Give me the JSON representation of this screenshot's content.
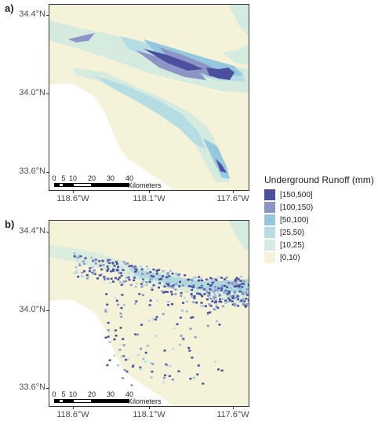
{
  "panels": [
    {
      "label": "a)",
      "lat_ticks": [
        "34.4°N",
        "34.0°N",
        "33.6°N"
      ],
      "lon_ticks": [
        "118.6°W",
        "118.1°W",
        "117.6°W"
      ],
      "scalebar": {
        "ticks": [
          "0",
          "5",
          "10",
          "20",
          "30",
          "40"
        ],
        "unit": "Kilometers"
      }
    },
    {
      "label": "b)",
      "lat_ticks": [
        "34.4°N",
        "34.0°N",
        "33.6°N"
      ],
      "lon_ticks": [
        "118.6°W",
        "118.1°W",
        "117.6°W"
      ],
      "scalebar": {
        "ticks": [
          "0",
          "5",
          "10",
          "20",
          "30",
          "40"
        ],
        "unit": "Kilometers"
      }
    }
  ],
  "legend": {
    "title": "Underground Runoff (mm)",
    "items": [
      {
        "label": "[150,500]",
        "color": "#4c4f9e"
      },
      {
        "label": "[100,150)",
        "color": "#8c96c6"
      },
      {
        "label": "[50,100)",
        "color": "#95c8de"
      },
      {
        "label": "[25,50)",
        "color": "#b6dde3"
      },
      {
        "label": "[10,25)",
        "color": "#d6ebe0"
      },
      {
        "label": "[0,10)",
        "color": "#f4f2d8"
      }
    ]
  }
}
